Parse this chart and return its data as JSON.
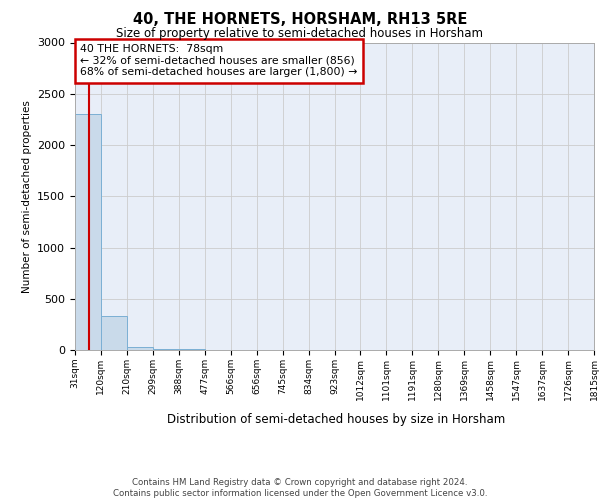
{
  "title": "40, THE HORNETS, HORSHAM, RH13 5RE",
  "subtitle": "Size of property relative to semi-detached houses in Horsham",
  "xlabel": "Distribution of semi-detached houses by size in Horsham",
  "ylabel": "Number of semi-detached properties",
  "bin_edges": [
    31,
    120,
    210,
    299,
    388,
    477,
    566,
    656,
    745,
    834,
    923,
    1012,
    1101,
    1191,
    1280,
    1369,
    1458,
    1547,
    1637,
    1726,
    1815
  ],
  "bar_heights": [
    2300,
    330,
    30,
    10,
    5,
    4,
    3,
    2,
    2,
    1,
    1,
    1,
    1,
    0,
    0,
    0,
    0,
    0,
    0,
    0
  ],
  "bar_color": "#c9daea",
  "bar_edge_color": "#7bafd4",
  "subject_value": 78,
  "pct_smaller": 32,
  "pct_larger": 68,
  "n_smaller": 856,
  "n_larger": 1800,
  "ylim": [
    0,
    3000
  ],
  "yticks": [
    0,
    500,
    1000,
    1500,
    2000,
    2500,
    3000
  ],
  "ann_box_facecolor": "#ffffff",
  "ann_box_edgecolor": "#cc0000",
  "red_line_color": "#cc0000",
  "grid_color": "#cccccc",
  "plot_bg_color": "#e8eef8",
  "footer_line1": "Contains HM Land Registry data © Crown copyright and database right 2024.",
  "footer_line2": "Contains public sector information licensed under the Open Government Licence v3.0."
}
